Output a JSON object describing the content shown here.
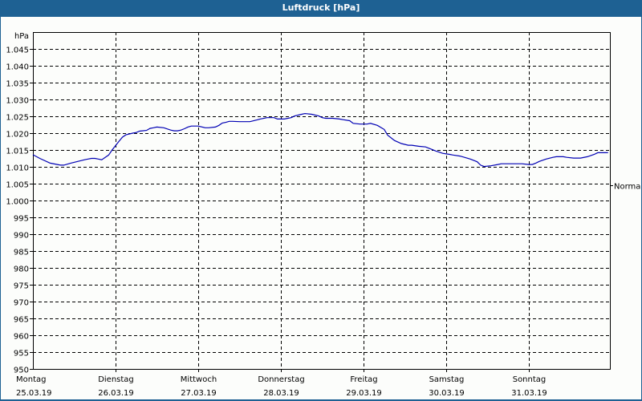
{
  "window": {
    "title": "Luftdruck [hPa]"
  },
  "chart_data": {
    "type": "line",
    "title": "Luftdruck [hPa]",
    "ylabel": "hPa",
    "xlabel": "",
    "ylim": [
      950,
      1050
    ],
    "y_ticks": [
      "1.045",
      "1.040",
      "1.035",
      "1.030",
      "1.025",
      "1.020",
      "1.015",
      "1.010",
      "1.005",
      "1.000",
      "995",
      "990",
      "985",
      "980",
      "975",
      "970",
      "965",
      "960",
      "955",
      "950"
    ],
    "y_tick_values": [
      1045,
      1040,
      1035,
      1030,
      1025,
      1020,
      1015,
      1010,
      1005,
      1000,
      995,
      990,
      985,
      980,
      975,
      970,
      965,
      960,
      955,
      950
    ],
    "x_categories": [
      {
        "day": "Montag",
        "date": "25.03.19"
      },
      {
        "day": "Dienstag",
        "date": "26.03.19"
      },
      {
        "day": "Mittwoch",
        "date": "27.03.19"
      },
      {
        "day": "Donnerstag",
        "date": "28.03.19"
      },
      {
        "day": "Freitag",
        "date": "29.03.19"
      },
      {
        "day": "Samstag",
        "date": "30.03.19"
      },
      {
        "day": "Sonntag",
        "date": "31.03.19"
      }
    ],
    "grid": true,
    "reference_line": {
      "label": "Normal",
      "value": 1004.5
    },
    "series": [
      {
        "name": "Luftdruck",
        "color": "#0000b4",
        "hours": [
          0,
          2,
          5,
          8,
          9,
          11,
          13,
          15,
          16,
          17,
          18,
          19,
          20,
          21,
          22,
          23,
          25,
          26,
          27,
          29,
          30,
          31,
          33,
          34,
          35,
          36,
          38,
          40,
          41,
          42,
          43,
          44,
          45,
          46,
          48,
          50,
          51,
          53,
          54,
          55,
          56,
          57,
          58,
          60,
          62,
          63,
          65,
          66,
          68,
          70,
          71,
          73,
          75,
          76,
          78,
          79,
          81,
          83,
          84,
          85,
          86,
          87,
          89,
          90,
          92,
          93,
          95,
          97,
          98,
          100,
          102,
          103,
          105,
          107,
          109,
          110,
          112,
          114,
          116,
          117,
          119,
          121,
          122,
          124,
          126,
          127,
          129,
          130,
          131,
          133,
          135,
          136,
          138,
          140,
          142,
          144,
          145,
          146,
          147,
          149,
          151,
          152,
          154,
          155,
          157,
          159,
          161,
          163,
          164,
          166,
          167
        ],
        "values": [
          1013.6,
          1012.5,
          1011.1,
          1010.5,
          1010.5,
          1011.1,
          1011.6,
          1012.1,
          1012.3,
          1012.5,
          1012.5,
          1012.3,
          1012.1,
          1012.8,
          1013.5,
          1015.0,
          1017.6,
          1018.8,
          1019.5,
          1020.0,
          1020.2,
          1020.6,
          1020.8,
          1021.4,
          1021.6,
          1021.8,
          1021.6,
          1020.9,
          1020.7,
          1020.7,
          1020.9,
          1021.3,
          1021.8,
          1022.1,
          1022.1,
          1021.6,
          1021.6,
          1021.8,
          1022.3,
          1023.0,
          1023.2,
          1023.5,
          1023.5,
          1023.4,
          1023.4,
          1023.4,
          1023.9,
          1024.2,
          1024.6,
          1024.6,
          1024.2,
          1024.2,
          1024.6,
          1025.1,
          1025.6,
          1025.8,
          1025.6,
          1025.1,
          1024.6,
          1024.4,
          1024.4,
          1024.4,
          1024.2,
          1024.0,
          1023.7,
          1022.9,
          1022.7,
          1022.7,
          1022.9,
          1022.3,
          1021.1,
          1019.4,
          1017.8,
          1016.9,
          1016.4,
          1016.4,
          1016.1,
          1015.9,
          1015.1,
          1014.7,
          1014.0,
          1013.7,
          1013.5,
          1013.2,
          1012.6,
          1012.3,
          1011.5,
          1010.5,
          1010.1,
          1010.3,
          1010.7,
          1010.9,
          1010.9,
          1010.9,
          1010.9,
          1010.7,
          1010.7,
          1011.1,
          1011.6,
          1012.3,
          1012.8,
          1013.0,
          1013.0,
          1012.8,
          1012.6,
          1012.6,
          1013.0,
          1013.7,
          1014.2,
          1014.2,
          1014.2
        ]
      }
    ]
  }
}
